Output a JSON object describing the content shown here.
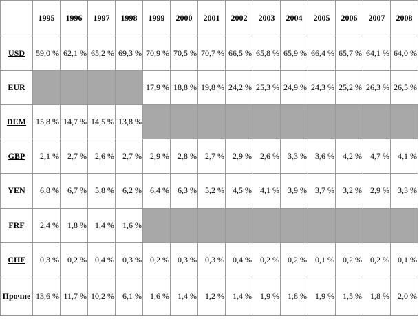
{
  "years": [
    "1995",
    "1996",
    "1997",
    "1998",
    "1999",
    "2000",
    "2001",
    "2002",
    "2003",
    "2004",
    "2005",
    "2006",
    "2007",
    "2008"
  ],
  "rows": [
    {
      "label": "USD",
      "underline": true,
      "values": [
        "59,0 %",
        "62,1 %",
        "65,2 %",
        "69,3 %",
        "70,9 %",
        "70,5 %",
        "70,7 %",
        "66,5 %",
        "65,8 %",
        "65,9 %",
        "66,4 %",
        "65,7 %",
        "64,1 %",
        "64,0 %"
      ]
    },
    {
      "label": "EUR",
      "underline": true,
      "values": [
        null,
        null,
        null,
        null,
        "17,9 %",
        "18,8 %",
        "19,8 %",
        "24,2 %",
        "25,3 %",
        "24,9 %",
        "24,3 %",
        "25,2 %",
        "26,3 %",
        "26,5 %"
      ]
    },
    {
      "label": "DEM",
      "underline": true,
      "values": [
        "15,8 %",
        "14,7 %",
        "14,5 %",
        "13,8 %",
        null,
        null,
        null,
        null,
        null,
        null,
        null,
        null,
        null,
        null
      ]
    },
    {
      "label": "GBP",
      "underline": true,
      "values": [
        "2,1 %",
        "2,7 %",
        "2,6 %",
        "2,7 %",
        "2,9 %",
        "2,8 %",
        "2,7 %",
        "2,9 %",
        "2,6 %",
        "3,3 %",
        "3,6 %",
        "4,2 %",
        "4,7 %",
        "4,1 %"
      ]
    },
    {
      "label": "YEN",
      "underline": false,
      "values": [
        "6,8 %",
        "6,7 %",
        "5,8 %",
        "6,2 %",
        "6,4 %",
        "6,3 %",
        "5,2 %",
        "4,5 %",
        "4,1 %",
        "3,9 %",
        "3,7 %",
        "3,2 %",
        "2,9 %",
        "3,3 %"
      ]
    },
    {
      "label": "FRF",
      "underline": true,
      "values": [
        "2,4 %",
        "1,8 %",
        "1,4 %",
        "1,6 %",
        null,
        null,
        null,
        null,
        null,
        null,
        null,
        null,
        null,
        null
      ]
    },
    {
      "label": "CHF",
      "underline": true,
      "values": [
        "0,3 %",
        "0,2 %",
        "0,4 %",
        "0,3 %",
        "0,2 %",
        "0,3 %",
        "0,3 %",
        "0,4 %",
        "0,2 %",
        "0,2 %",
        "0,1 %",
        "0,2 %",
        "0,2 %",
        "0,1 %"
      ]
    },
    {
      "label": "Прочие",
      "underline": false,
      "values": [
        "13,6 %",
        "11,7 %",
        "10,2 %",
        "6,1 %",
        "1,6 %",
        "1,4 %",
        "1,2 %",
        "1,4 %",
        "1,9 %",
        "1,8 %",
        "1,9 %",
        "1,5 %",
        "1,8 %",
        "2,0 %"
      ]
    }
  ],
  "colors": {
    "empty_cell": "#a8a8a8",
    "border": "#9a9a9a"
  }
}
